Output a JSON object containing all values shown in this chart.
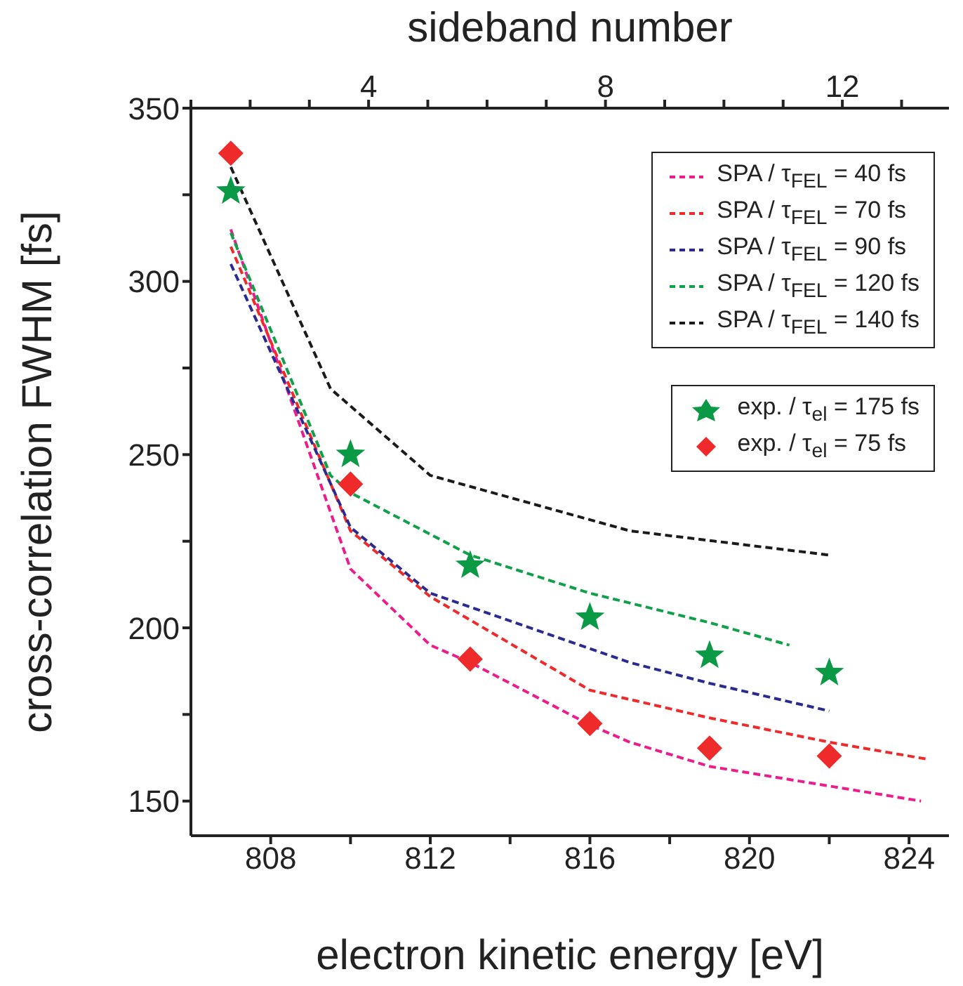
{
  "chart_data": {
    "type": "line",
    "xlabel": "electron kinetic energy [eV]",
    "ylabel": "cross-correlation FWHM [fs]",
    "x2label": "sideband number",
    "xlim": [
      806,
      825
    ],
    "xticks": [
      808,
      {
        "value": 810,
        "label": null
      },
      812,
      {
        "value": 814,
        "label": null
      },
      816,
      {
        "value": 818,
        "label": null
      },
      820,
      {
        "value": 822,
        "label": null
      },
      824
    ],
    "ylim": [
      140,
      350
    ],
    "yticks": [
      150,
      {
        "value": 175,
        "label": null
      },
      200,
      {
        "value": 225,
        "label": null
      },
      250,
      {
        "value": 275,
        "label": null
      },
      300,
      {
        "value": 325,
        "label": null
      },
      350
    ],
    "x2lim": [
      1,
      13.8
    ],
    "x2ticks": [
      {
        "value": 1,
        "label": null
      },
      {
        "value": 2,
        "label": null
      },
      {
        "value": 3,
        "label": null
      },
      4,
      {
        "value": 5,
        "label": null
      },
      {
        "value": 6,
        "label": null
      },
      {
        "value": 7,
        "label": null
      },
      8,
      {
        "value": 9,
        "label": null
      },
      {
        "value": 10,
        "label": null
      },
      {
        "value": 11,
        "label": null
      },
      12,
      {
        "value": 13,
        "label": null
      }
    ],
    "grid": false,
    "legend": "top right",
    "series": [
      {
        "name": "SPA / τ$_{FEL}$ = 40 fs",
        "color": "#ec1c8c",
        "line_style": "dashed",
        "marker": "none",
        "x": [
          807,
          810,
          812,
          813,
          816,
          817,
          819,
          824.3
        ],
        "values": [
          315,
          217,
          195,
          190,
          172,
          167,
          160,
          150
        ]
      },
      {
        "name": "SPA / τ$_{FEL}$ = 70 fs",
        "color": "#ee2a2a",
        "line_style": "dashed",
        "marker": "none",
        "x": [
          807,
          810,
          812,
          816,
          819,
          822,
          824.5
        ],
        "values": [
          310,
          228,
          209,
          182,
          174,
          167,
          162
        ]
      },
      {
        "name": "SPA / τ$_{FEL}$ = 90 fs",
        "color": "#2a2a90",
        "line_style": "dashed",
        "marker": "none",
        "x": [
          807,
          810,
          812,
          817,
          819,
          822
        ],
        "values": [
          305,
          229,
          210,
          190,
          184,
          176
        ]
      },
      {
        "name": "SPA / τ$_{FEL}$ = 120 fs",
        "color": "#10a04a",
        "line_style": "dashed",
        "marker": "none",
        "x": [
          807,
          809.5,
          810,
          813,
          816,
          819,
          821
        ],
        "values": [
          314,
          244,
          239,
          221,
          210,
          201.5,
          195
        ]
      },
      {
        "name": "SPA / τ$_{FEL}$ = 140 fs",
        "color": "#1a1a1a",
        "line_style": "dashed",
        "marker": "none",
        "x": [
          807,
          809.5,
          812,
          817,
          822
        ],
        "values": [
          333,
          269,
          244,
          228,
          221
        ]
      },
      {
        "name": "exp. / τ$_{el}$ = 175 fs",
        "color": "#0a9a45",
        "type": "scatter",
        "marker": "star",
        "x": [
          807,
          810,
          813,
          816,
          819,
          822
        ],
        "values": [
          326,
          250,
          218,
          203,
          192,
          187
        ]
      },
      {
        "name": "exp. / τ$_{el}$ = 75 fs",
        "color": "#ee2a2a",
        "type": "scatter",
        "marker": "diamond",
        "x": [
          807,
          810,
          813,
          816,
          819,
          822
        ],
        "values": [
          337,
          241.5,
          191,
          172.4,
          165.3,
          163
        ]
      }
    ]
  }
}
